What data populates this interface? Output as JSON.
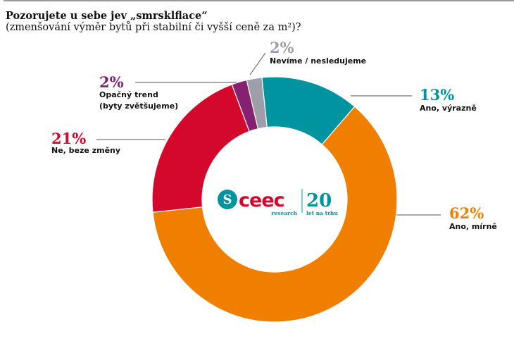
{
  "title": "Pozorujete u sebe jev „smrsklflace“",
  "subtitle": "(zmenšování výměr bytů při stabilní či vyšší ceně za m²)?",
  "logo": {
    "brand": "ceec",
    "sub": "research",
    "number": "20",
    "number_sub": "let na trhu",
    "brand_color": "#d4082c",
    "accent_color": "#0093a0"
  },
  "chart_data": {
    "type": "pie",
    "variant": "donut",
    "legend": "none",
    "slices": [
      {
        "label": "Ano, výrazně",
        "value": 13,
        "value_label": "13%",
        "color": "#0093a0"
      },
      {
        "label": "Ano, mírně",
        "value": 62,
        "value_label": "62%",
        "color": "#f07f00"
      },
      {
        "label": "Ne, beze změny",
        "value": 21,
        "value_label": "21%",
        "color": "#d4082c"
      },
      {
        "label": "Opačný trend (byty zvětšujeme)",
        "label_lines": [
          "Opačný trend",
          "(byty zvětšujeme)"
        ],
        "value": 2,
        "value_label": "2%",
        "color": "#862070"
      },
      {
        "label": "Nevíme / nesledujeme",
        "value": 2,
        "value_label": "2%",
        "color": "#9d9ea9"
      }
    ]
  }
}
